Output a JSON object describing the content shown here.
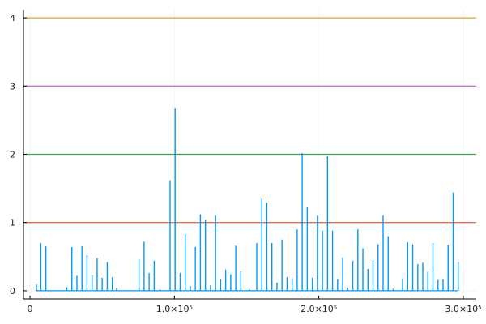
{
  "chart_data": {
    "type": "line",
    "title": "",
    "xlabel": "",
    "ylabel": "",
    "xlim": [
      -4500,
      309000
    ],
    "ylim": [
      -0.12,
      4.12
    ],
    "grid": true,
    "legend": "none",
    "x_ticks": [
      {
        "value": 0,
        "label": "0"
      },
      {
        "value": 100000,
        "label": "1.0×10⁵"
      },
      {
        "value": 200000,
        "label": "2.0×10⁵"
      },
      {
        "value": 300000,
        "label": "3.0×10⁵"
      }
    ],
    "y_ticks": [
      {
        "value": 0,
        "label": "0"
      },
      {
        "value": 1,
        "label": "1"
      },
      {
        "value": 2,
        "label": "2"
      },
      {
        "value": 3,
        "label": "3"
      },
      {
        "value": 4,
        "label": "4"
      }
    ],
    "hlines": [
      {
        "y": 1,
        "color": "#e26f46"
      },
      {
        "y": 2,
        "color": "#3da44d"
      },
      {
        "y": 3,
        "color": "#c271d2"
      },
      {
        "y": 4,
        "color": "#e2a21d"
      }
    ],
    "series": [
      {
        "color": "#009afa",
        "spikes": [
          [
            4500,
            0.09
          ],
          [
            7500,
            0.7
          ],
          [
            11000,
            0.65
          ],
          [
            25500,
            0.05
          ],
          [
            29000,
            0.64
          ],
          [
            32500,
            0.22
          ],
          [
            36000,
            0.65
          ],
          [
            39500,
            0.52
          ],
          [
            43000,
            0.23
          ],
          [
            46500,
            0.48
          ],
          [
            50000,
            0.19
          ],
          [
            53500,
            0.42
          ],
          [
            57000,
            0.2
          ],
          [
            60000,
            0.04
          ],
          [
            75500,
            0.46
          ],
          [
            79000,
            0.72
          ],
          [
            82500,
            0.26
          ],
          [
            86000,
            0.44
          ],
          [
            90000,
            0.02
          ],
          [
            97000,
            1.62
          ],
          [
            100500,
            2.68
          ],
          [
            104000,
            0.26
          ],
          [
            107500,
            0.83
          ],
          [
            111000,
            0.07
          ],
          [
            114500,
            0.64
          ],
          [
            118000,
            1.12
          ],
          [
            121500,
            1.04
          ],
          [
            125000,
            0.08
          ],
          [
            128500,
            1.1
          ],
          [
            132000,
            0.17
          ],
          [
            135500,
            0.31
          ],
          [
            139000,
            0.24
          ],
          [
            142500,
            0.66
          ],
          [
            146000,
            0.28
          ],
          [
            152000,
            0.02
          ],
          [
            157000,
            0.7
          ],
          [
            160500,
            1.35
          ],
          [
            164000,
            1.29
          ],
          [
            167500,
            0.7
          ],
          [
            171000,
            0.12
          ],
          [
            174500,
            0.75
          ],
          [
            178000,
            0.2
          ],
          [
            181500,
            0.18
          ],
          [
            185000,
            0.9
          ],
          [
            188500,
            2.02
          ],
          [
            192000,
            1.22
          ],
          [
            195500,
            0.19
          ],
          [
            199000,
            1.1
          ],
          [
            202500,
            0.88
          ],
          [
            206000,
            1.97
          ],
          [
            209500,
            0.88
          ],
          [
            213000,
            0.17
          ],
          [
            216500,
            0.49
          ],
          [
            220000,
            0.04
          ],
          [
            223500,
            0.44
          ],
          [
            227000,
            0.9
          ],
          [
            230500,
            0.62
          ],
          [
            234000,
            0.32
          ],
          [
            237500,
            0.45
          ],
          [
            241000,
            0.68
          ],
          [
            244500,
            1.1
          ],
          [
            248000,
            0.8
          ],
          [
            251500,
            0.03
          ],
          [
            258000,
            0.18
          ],
          [
            261500,
            0.71
          ],
          [
            265000,
            0.68
          ],
          [
            268500,
            0.39
          ],
          [
            272000,
            0.41
          ],
          [
            275500,
            0.28
          ],
          [
            279000,
            0.7
          ],
          [
            282500,
            0.16
          ],
          [
            286000,
            0.17
          ],
          [
            289500,
            0.67
          ],
          [
            293000,
            1.44
          ],
          [
            296500,
            0.42
          ]
        ]
      }
    ]
  }
}
